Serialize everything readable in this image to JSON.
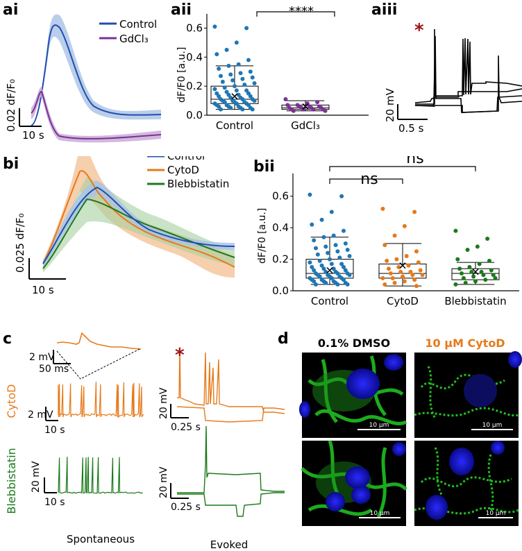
{
  "panels": {
    "ai": "ai",
    "aii": "aii",
    "aiii": "aiii",
    "bi": "bi",
    "bii": "bii",
    "c": "c",
    "d": "d"
  },
  "colors": {
    "control": "#1f4fad",
    "control_box": "#1f77b4",
    "gdcl3": "#7b3294",
    "cytod": "#e57a1b",
    "blebbistatin": "#1a7a1a",
    "star": "#a01010"
  },
  "ai": {
    "legend": [
      "Control",
      "GdCl₃"
    ],
    "scale_y": "0.02 dF/F₀",
    "scale_x": "10 s"
  },
  "aii": {
    "ylabel": "dF/F0 [a.u.]",
    "categories": [
      "Control",
      "GdCl₃"
    ],
    "yticks": [
      "0.0",
      "0.2",
      "0.4",
      "0.6"
    ],
    "sig": "****"
  },
  "aiii": {
    "star": "*",
    "scale_y": "20 mV",
    "scale_x": "0.5 s"
  },
  "bi": {
    "legend": [
      "Control",
      "CytoD",
      "Blebbistatin"
    ],
    "scale_y": "0.025 dF/F₀",
    "scale_x": "10 s"
  },
  "bii": {
    "ylabel": "dF/F0 [a.u.]",
    "categories": [
      "Control",
      "CytoD",
      "Blebbistatin"
    ],
    "yticks": [
      "0.0",
      "0.2",
      "0.4",
      "0.6"
    ],
    "sig1": "ns",
    "sig2": "ns"
  },
  "c": {
    "row_cytod": "CytoD",
    "row_bleb": "Blebbistatin",
    "inset_y": "2 mV",
    "inset_x": "50 ms",
    "spont_cyto_y": "2 mV",
    "spont_cyto_x": "10 s",
    "evoked_cyto_y": "20 mV",
    "evoked_cyto_x": "0.25 s",
    "spont_bleb_y": "20 mV",
    "spont_bleb_x": "10 s",
    "evoked_bleb_y": "20 mV",
    "evoked_bleb_x": "0.25 s",
    "star": "*",
    "xlabel_spont": "Spontaneous",
    "xlabel_evoked": "Evoked"
  },
  "d": {
    "col1": "0.1% DMSO",
    "col2": "10 μM CytoD",
    "scale": "10 μm"
  },
  "chart_data": [
    {
      "type": "box",
      "panel": "aii",
      "title": "",
      "ylabel": "dF/F0 [a.u.]",
      "ylim": [
        0,
        0.65
      ],
      "categories": [
        "Control",
        "GdCl₃"
      ],
      "stats": [
        {
          "q1": 0.08,
          "median": 0.11,
          "q3": 0.2,
          "whislo": 0.04,
          "whishi": 0.34,
          "mean": 0.13
        },
        {
          "q1": 0.04,
          "median": 0.05,
          "q3": 0.07,
          "whislo": 0.03,
          "whishi": 0.1,
          "mean": 0.06
        }
      ],
      "points": [
        [
          0.61,
          0.6,
          0.5,
          0.45,
          0.42,
          0.38,
          0.35,
          0.34,
          0.32,
          0.3,
          0.29,
          0.28,
          0.27,
          0.26,
          0.25,
          0.24,
          0.23,
          0.22,
          0.21,
          0.2,
          0.19,
          0.18,
          0.17,
          0.17,
          0.16,
          0.15,
          0.15,
          0.14,
          0.14,
          0.13,
          0.13,
          0.12,
          0.12,
          0.11,
          0.11,
          0.11,
          0.1,
          0.1,
          0.1,
          0.09,
          0.09,
          0.09,
          0.08,
          0.08,
          0.08,
          0.07,
          0.07,
          0.07,
          0.06,
          0.06,
          0.06,
          0.05,
          0.05,
          0.05,
          0.04,
          0.04,
          0.04
        ],
        [
          0.11,
          0.09,
          0.08,
          0.07,
          0.07,
          0.06,
          0.06,
          0.06,
          0.05,
          0.05,
          0.05,
          0.05,
          0.04,
          0.04,
          0.04,
          0.04,
          0.03,
          0.03
        ]
      ]
    },
    {
      "type": "box",
      "panel": "bii",
      "title": "",
      "ylabel": "dF/F0 [a.u.]",
      "ylim": [
        0,
        0.7
      ],
      "categories": [
        "Control",
        "CytoD",
        "Blebbistatin"
      ],
      "stats": [
        {
          "q1": 0.08,
          "median": 0.11,
          "q3": 0.2,
          "whislo": 0.04,
          "whishi": 0.34,
          "mean": 0.13
        },
        {
          "q1": 0.08,
          "median": 0.11,
          "q3": 0.17,
          "whislo": 0.03,
          "whishi": 0.3,
          "mean": 0.16
        },
        {
          "q1": 0.07,
          "median": 0.11,
          "q3": 0.14,
          "whislo": 0.04,
          "whishi": 0.18,
          "mean": 0.12
        }
      ],
      "points": [
        [
          0.61,
          0.6,
          0.5,
          0.45,
          0.42,
          0.38,
          0.35,
          0.34,
          0.32,
          0.3,
          0.29,
          0.28,
          0.27,
          0.26,
          0.25,
          0.24,
          0.23,
          0.22,
          0.21,
          0.2,
          0.19,
          0.18,
          0.17,
          0.17,
          0.16,
          0.15,
          0.15,
          0.14,
          0.14,
          0.13,
          0.13,
          0.12,
          0.12,
          0.11,
          0.11,
          0.11,
          0.1,
          0.1,
          0.1,
          0.09,
          0.09,
          0.09,
          0.08,
          0.08,
          0.08,
          0.07,
          0.07,
          0.07,
          0.06,
          0.06,
          0.06,
          0.05,
          0.05,
          0.05,
          0.04,
          0.04,
          0.04
        ],
        [
          0.52,
          0.5,
          0.41,
          0.35,
          0.29,
          0.25,
          0.22,
          0.2,
          0.19,
          0.18,
          0.16,
          0.15,
          0.14,
          0.13,
          0.12,
          0.12,
          0.11,
          0.1,
          0.1,
          0.09,
          0.08,
          0.08,
          0.07,
          0.06,
          0.05,
          0.04,
          0.03
        ],
        [
          0.38,
          0.33,
          0.28,
          0.26,
          0.2,
          0.19,
          0.17,
          0.15,
          0.14,
          0.13,
          0.12,
          0.12,
          0.11,
          0.1,
          0.1,
          0.09,
          0.08,
          0.08,
          0.07,
          0.06,
          0.05,
          0.04
        ]
      ]
    },
    {
      "type": "line",
      "panel": "ai",
      "series": [
        {
          "name": "Control",
          "x": [
            0,
            2,
            4,
            6,
            8,
            10,
            12,
            14,
            16,
            18,
            20,
            25,
            30,
            35,
            40
          ],
          "values": [
            0.005,
            0.03,
            0.09,
            0.11,
            0.105,
            0.085,
            0.065,
            0.048,
            0.036,
            0.027,
            0.02,
            0.012,
            0.008,
            0.006,
            0.005
          ]
        },
        {
          "name": "GdCl₃",
          "x": [
            0,
            2,
            4,
            6,
            8,
            10,
            12,
            14,
            16,
            18,
            20,
            25,
            30,
            35,
            40
          ],
          "values": [
            0.005,
            0.02,
            0.012,
            0.004,
            0.002,
            0.002,
            0.003,
            0.003,
            0.003,
            0.003,
            0.003,
            0.003,
            0.003,
            0.003,
            0.003
          ]
        }
      ]
    },
    {
      "type": "line",
      "panel": "bi",
      "series": [
        {
          "name": "Control",
          "x": [
            0,
            5,
            10,
            15,
            20,
            25,
            30,
            35,
            40,
            45,
            50
          ],
          "values": [
            0.005,
            0.03,
            0.06,
            0.07,
            0.062,
            0.05,
            0.037,
            0.025,
            0.015,
            0.008,
            0.006
          ]
        },
        {
          "name": "CytoD",
          "x": [
            0,
            5,
            10,
            15,
            20,
            25,
            30,
            35,
            40,
            45,
            50
          ],
          "values": [
            0.005,
            0.04,
            0.08,
            0.078,
            0.06,
            0.048,
            0.037,
            0.03,
            0.017,
            0.006,
            0.003
          ]
        },
        {
          "name": "Blebbistatin",
          "x": [
            0,
            5,
            10,
            15,
            20,
            25,
            30,
            35,
            40,
            45,
            50
          ],
          "values": [
            0.005,
            0.025,
            0.052,
            0.058,
            0.05,
            0.046,
            0.042,
            0.035,
            0.022,
            0.01,
            0.006
          ]
        }
      ]
    }
  ]
}
